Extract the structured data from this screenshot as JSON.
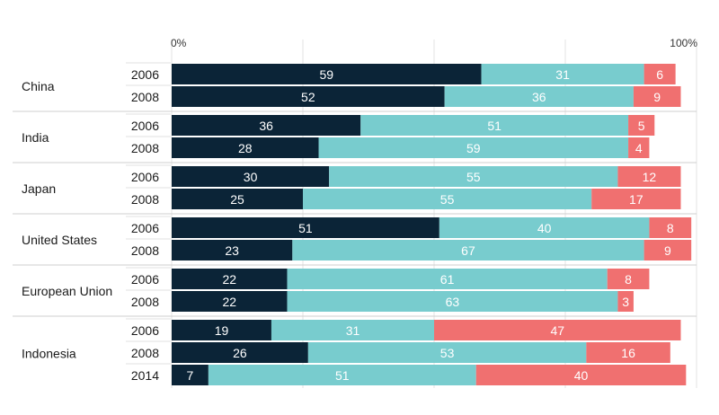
{
  "chart_data": {
    "type": "bar",
    "orientation": "horizontal-stacked",
    "xlim": [
      0,
      100
    ],
    "x_ticks": [
      {
        "value": 0,
        "label": "0%"
      },
      {
        "value": 25,
        "label": ""
      },
      {
        "value": 50,
        "label": ""
      },
      {
        "value": 75,
        "label": ""
      },
      {
        "value": 100,
        "label": "100%"
      }
    ],
    "grid": true,
    "legend": "none",
    "series_colors": [
      "#0b2437",
      "#78ccce",
      "#f07070"
    ],
    "groups": [
      {
        "name": "China",
        "rows": [
          {
            "year": "2006",
            "values": [
              59,
              31,
              6
            ]
          },
          {
            "year": "2008",
            "values": [
              52,
              36,
              9
            ]
          }
        ]
      },
      {
        "name": "India",
        "rows": [
          {
            "year": "2006",
            "values": [
              36,
              51,
              5
            ]
          },
          {
            "year": "2008",
            "values": [
              28,
              59,
              4
            ]
          }
        ]
      },
      {
        "name": "Japan",
        "rows": [
          {
            "year": "2006",
            "values": [
              30,
              55,
              12
            ]
          },
          {
            "year": "2008",
            "values": [
              25,
              55,
              17
            ]
          }
        ]
      },
      {
        "name": "United States",
        "rows": [
          {
            "year": "2006",
            "values": [
              51,
              40,
              8
            ]
          },
          {
            "year": "2008",
            "values": [
              23,
              67,
              9
            ]
          }
        ]
      },
      {
        "name": "European Union",
        "rows": [
          {
            "year": "2006",
            "values": [
              22,
              61,
              8
            ]
          },
          {
            "year": "2008",
            "values": [
              22,
              63,
              3
            ]
          }
        ]
      },
      {
        "name": "Indonesia",
        "rows": [
          {
            "year": "2006",
            "values": [
              19,
              31,
              47
            ]
          },
          {
            "year": "2008",
            "values": [
              26,
              53,
              16
            ]
          },
          {
            "year": "2014",
            "values": [
              7,
              51,
              40
            ]
          }
        ]
      }
    ]
  }
}
